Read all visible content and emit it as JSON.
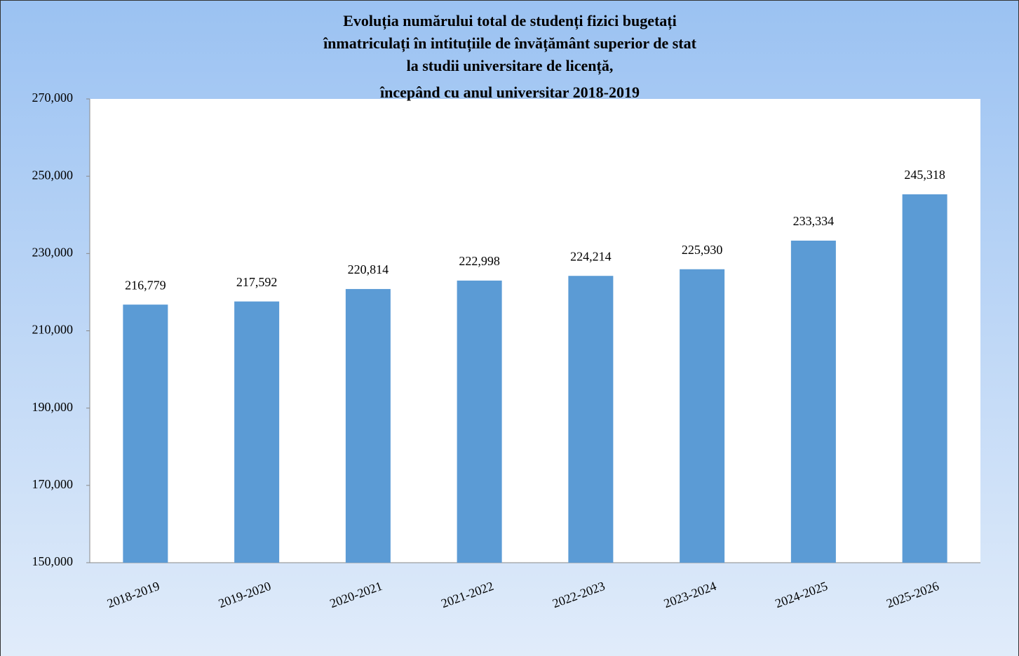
{
  "chart_data": {
    "type": "bar",
    "title": [
      "Evoluția numărului total de studenți fizici bugetați",
      "înmatriculați în intituțiile de învățământ superior de stat",
      "la studii universitare de licență,",
      "începând cu anul universitar 2018-2019"
    ],
    "categories": [
      "2018-2019",
      "2019-2020",
      "2020-2021",
      "2021-2022",
      "2022-2023",
      "2023-2024",
      "2024-2025",
      "2025-2026"
    ],
    "values": [
      216779,
      217592,
      220814,
      222998,
      224214,
      225930,
      233334,
      245318
    ],
    "value_labels": [
      "216,779",
      "217,592",
      "220,814",
      "222,998",
      "224,214",
      "225,930",
      "233,334",
      "245,318"
    ],
    "color": "#5b9bd5",
    "ylim": [
      150000,
      270000
    ],
    "yticks": [
      {
        "value": 150000,
        "label": "150,000"
      },
      {
        "value": 170000,
        "label": "170,000"
      },
      {
        "value": 190000,
        "label": "190,000"
      },
      {
        "value": 210000,
        "label": "210,000"
      },
      {
        "value": 230000,
        "label": "230,000"
      },
      {
        "value": 250000,
        "label": "250,000"
      },
      {
        "value": 270000,
        "label": "270,000"
      }
    ],
    "grid": false
  }
}
